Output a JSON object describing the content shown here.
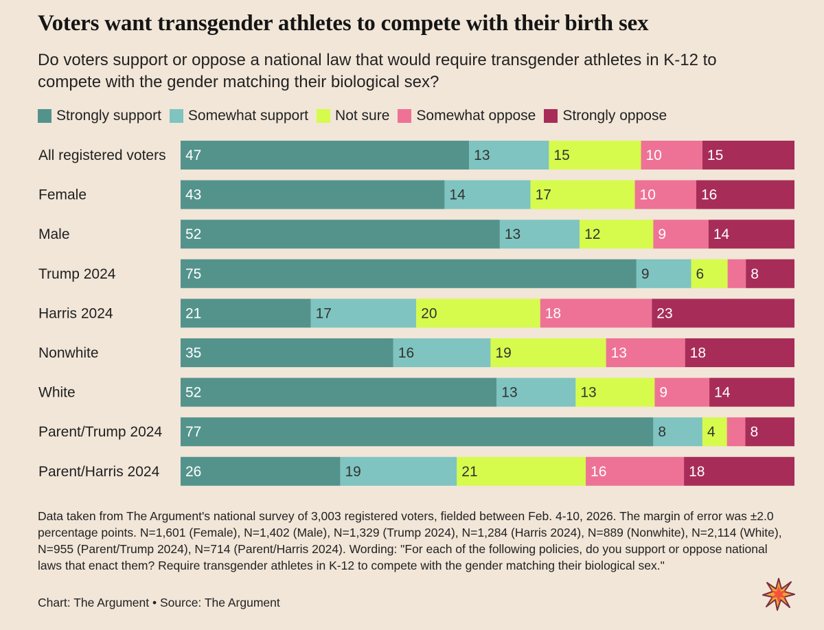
{
  "title": "Voters want transgender athletes to compete with their birth sex",
  "subtitle": "Do voters support or oppose a national law that would require transgender athletes in K-12 to compete with the gender matching their biological sex?",
  "footnote": "Data taken from The Argument's national survey of 3,003 registered voters, fielded between Feb. 4-10, 2026. The margin of error was ±2.0 percentage points. N=1,601 (Female), N=1,402 (Male), N=1,329 (Trump 2024), N=1,284 (Harris 2024), N=889 (Nonwhite), N=2,114 (White), N=955 (Parent/Trump 2024), N=714 (Parent/Harris 2024). Wording: \"For each of the following policies, do you support or oppose national laws that enact them? Require transgender athletes in K-12 to compete with the gender matching their biological sex.\"",
  "credit": "Chart: The Argument • Source: The Argument",
  "logo_icon": "starburst-icon",
  "chart_data": {
    "type": "bar",
    "orientation": "horizontal",
    "stacked": true,
    "xlim": [
      0,
      100
    ],
    "legend_position": "top",
    "categories": [
      "All registered voters",
      "Female",
      "Male",
      "Trump 2024",
      "Harris 2024",
      "Nonwhite",
      "White",
      "Parent/Trump 2024",
      "Parent/Harris 2024"
    ],
    "series": [
      {
        "name": "Strongly support",
        "color": "#54938c",
        "label_color": "#ffffff",
        "values": [
          47,
          43,
          52,
          75,
          21,
          35,
          52,
          77,
          26
        ]
      },
      {
        "name": "Somewhat support",
        "color": "#7fc4c0",
        "label_color": "#333333",
        "values": [
          13,
          14,
          13,
          9,
          17,
          16,
          13,
          8,
          19
        ]
      },
      {
        "name": "Not sure",
        "color": "#d6fb4d",
        "label_color": "#333333",
        "values": [
          15,
          17,
          12,
          6,
          20,
          19,
          13,
          4,
          21
        ]
      },
      {
        "name": "Somewhat oppose",
        "color": "#ee7296",
        "label_color": "#ffffff",
        "values": [
          10,
          10,
          9,
          3,
          18,
          13,
          9,
          3,
          16
        ]
      },
      {
        "name": "Strongly oppose",
        "color": "#a72d58",
        "label_color": "#ffffff",
        "values": [
          15,
          16,
          14,
          8,
          23,
          18,
          14,
          8,
          18
        ]
      }
    ],
    "data_labels": [
      [
        "47",
        "43",
        "52",
        "75",
        "21",
        "35",
        "52",
        "77",
        "26"
      ],
      [
        "13",
        "14",
        "13",
        "9",
        "17",
        "16",
        "13",
        "8",
        "19"
      ],
      [
        "15",
        "17",
        "12",
        "6",
        "20",
        "19",
        "13",
        "4",
        "21"
      ],
      [
        "10",
        "10",
        "9",
        "",
        "18",
        "13",
        "9",
        "",
        "16"
      ],
      [
        "15",
        "16",
        "14",
        "8",
        "23",
        "18",
        "14",
        "8",
        "18"
      ]
    ]
  }
}
